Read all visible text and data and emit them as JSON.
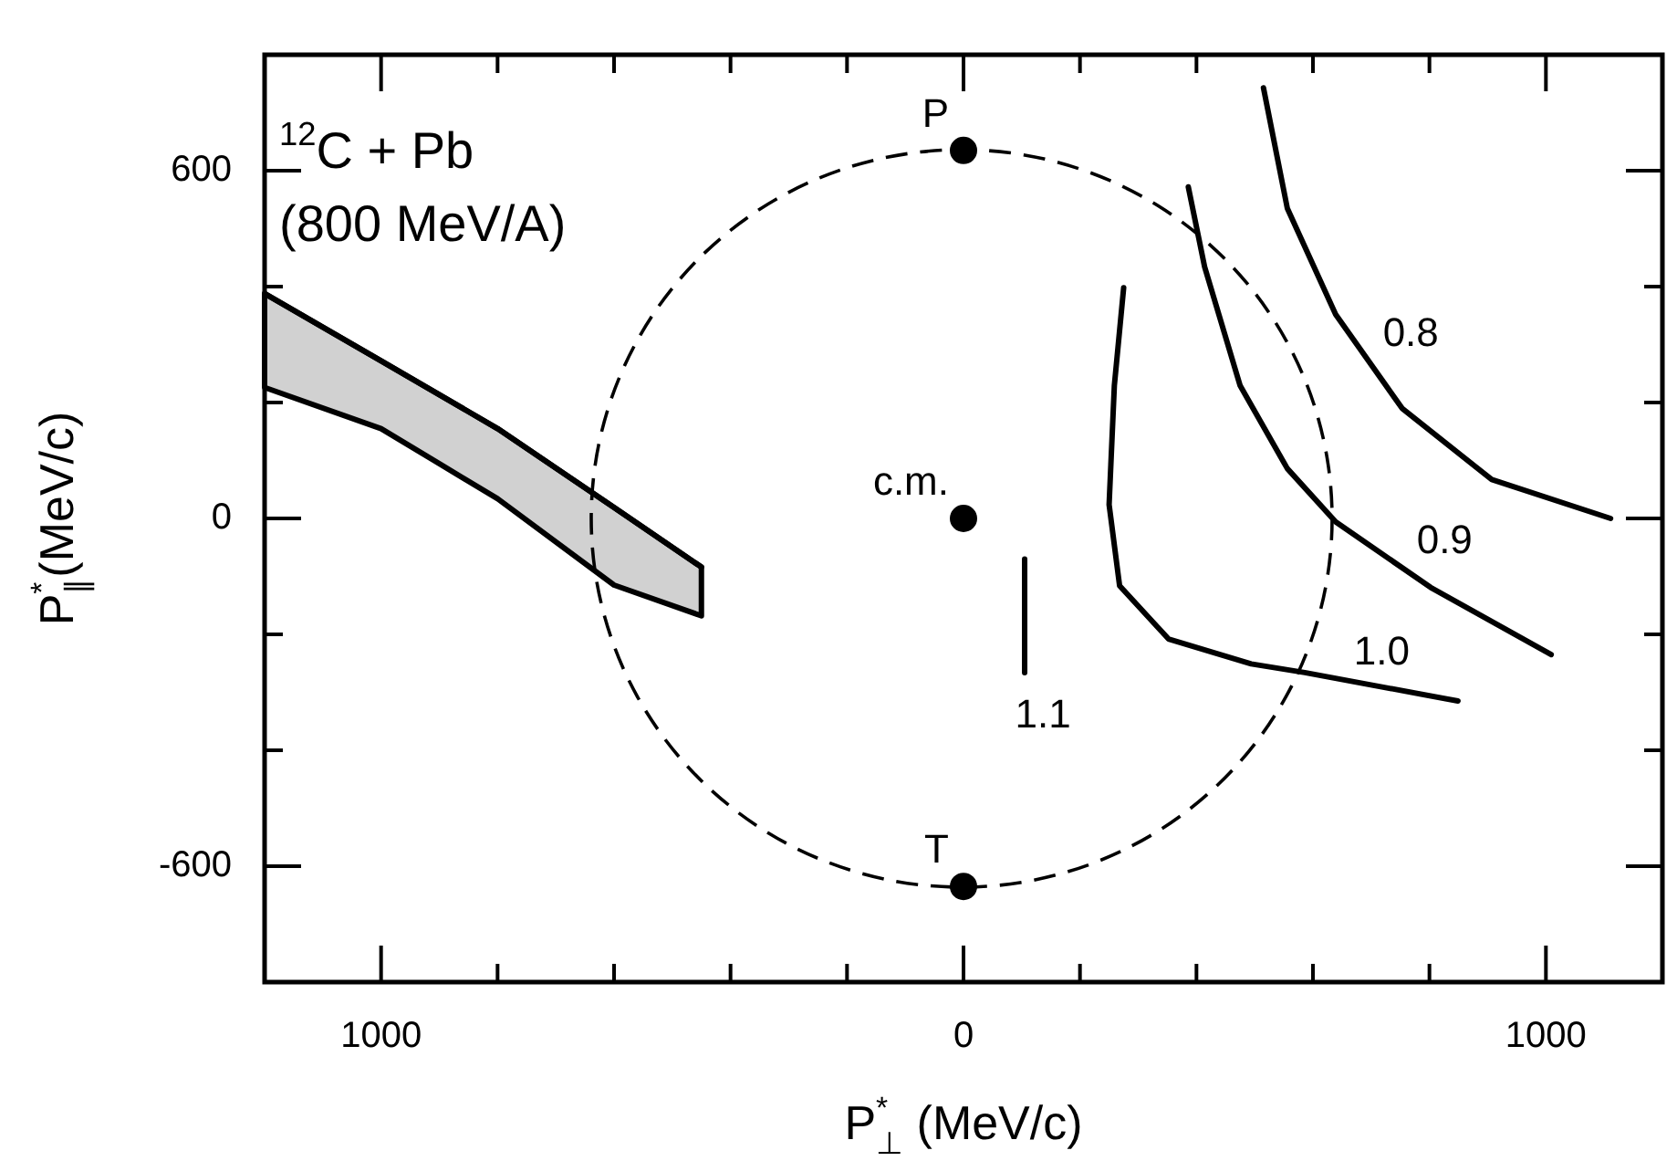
{
  "chart_data": {
    "type": "line",
    "xlabel": "P$^{*}$$_{⊥}$ (MeV/c)",
    "ylabel": "P$^{*}$$_{∥}$(MeV/c)",
    "annotations": [
      "$^{12}$C + Pb",
      "(800 MeV/A)",
      {
        "text": "P",
        "x": 0,
        "y": 635
      },
      {
        "text": "T",
        "x": 0,
        "y": -635
      },
      {
        "text": "c.m.",
        "x": 0,
        "y": 0
      },
      {
        "text": "0.8",
        "x": 695,
        "y": 272
      },
      {
        "text": "0.9",
        "x": 753,
        "y": -85
      },
      {
        "text": "1.0",
        "x": 645,
        "y": -277
      },
      {
        "text": "1.1",
        "x": 105,
        "y": -266
      }
    ],
    "xlim": [
      -1200,
      1200
    ],
    "ylim": [
      -800,
      800
    ],
    "xticks": [
      {
        "value": -1000,
        "label": "1000"
      },
      {
        "value": -800,
        "label": null
      },
      {
        "value": -600,
        "label": null
      },
      {
        "value": -400,
        "label": null
      },
      {
        "value": -200,
        "label": null
      },
      0,
      {
        "value": 200,
        "label": null
      },
      {
        "value": 400,
        "label": null
      },
      {
        "value": 600,
        "label": null
      },
      {
        "value": 800,
        "label": null
      },
      {
        "value": 1000,
        "label": "1000"
      }
    ],
    "yticks": [
      {
        "value": -600,
        "label": "-600"
      },
      {
        "value": -400,
        "label": null
      },
      {
        "value": -200,
        "label": null
      },
      0,
      {
        "value": 200,
        "label": null
      },
      {
        "value": 400,
        "label": null
      },
      {
        "value": 600,
        "label": "600"
      }
    ],
    "series": [
      {
        "color": "#000000",
        "x": [
          -1200,
          -1000,
          -800,
          -600,
          -450
        ],
        "values": [
          388,
          272,
          155,
          19,
          -84
        ],
        "upper": [
          388,
          272,
          155,
          19,
          -84
        ],
        "lower": [
          226,
          155,
          34,
          -115,
          -168
        ]
      },
      {
        "color": "#000000",
        "x": [
          515,
          556,
          639,
          753,
          907,
          1111
        ],
        "values": [
          743,
          535,
          352,
          190,
          67,
          0
        ]
      },
      {
        "color": "#000000",
        "x": [
          386,
          414,
          475,
          556,
          639,
          802,
          1009
        ],
        "values": [
          572,
          434,
          229,
          86,
          -6,
          -119,
          -235
        ]
      },
      {
        "color": "#000000",
        "x": [
          275,
          259,
          250,
          268,
          352,
          494,
          586,
          849
        ],
        "values": [
          398,
          229,
          24,
          -116,
          -208,
          -251,
          -266,
          -315
        ]
      },
      {
        "color": "#000000",
        "x": [
          105,
          105
        ],
        "values": [
          -70,
          -266
        ]
      },
      {
        "type": "scatter",
        "color": "#000000",
        "marker": "circle",
        "x": [
          0,
          0,
          0
        ],
        "values": [
          635,
          -635,
          0
        ]
      }
    ]
  }
}
